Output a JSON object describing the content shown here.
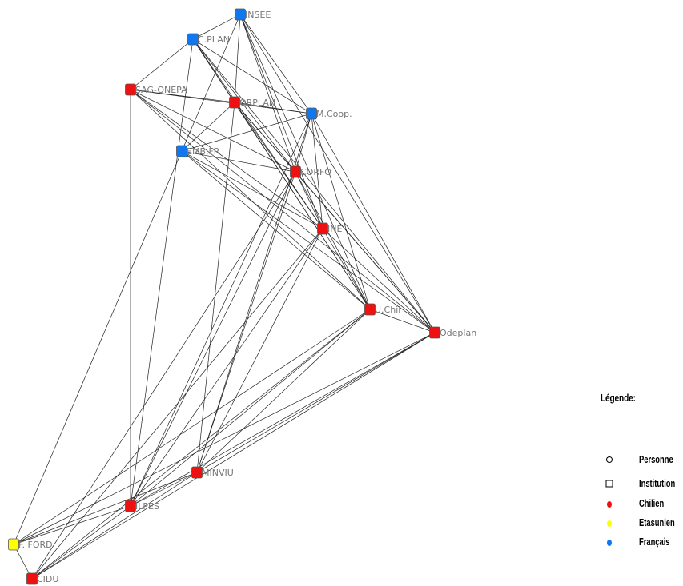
{
  "nodes": [
    {
      "id": "insee",
      "label": "INSEE",
      "nationality": "francais"
    },
    {
      "id": "cplan",
      "label": "C.PLAN",
      "nationality": "francais"
    },
    {
      "id": "sagonepa",
      "label": "SAG-ONEPA",
      "nationality": "chilien"
    },
    {
      "id": "orplan",
      "label": "ORPLAN",
      "nationality": "chilien"
    },
    {
      "id": "mcoop",
      "label": "M.Coop.",
      "nationality": "francais"
    },
    {
      "id": "embfr",
      "label": "EMB.FR",
      "nationality": "francais"
    },
    {
      "id": "corfo",
      "label": "CORFO",
      "nationality": "chilien"
    },
    {
      "id": "ine",
      "label": "INE",
      "nationality": "chilien"
    },
    {
      "id": "uchile",
      "label": "U.Chil",
      "nationality": "chilien"
    },
    {
      "id": "odeplan",
      "label": "Odeplan",
      "nationality": "chilien"
    },
    {
      "id": "minviu",
      "label": "MINVIU",
      "nationality": "chilien"
    },
    {
      "id": "ilpes",
      "label": "ILPES",
      "nationality": "chilien"
    },
    {
      "id": "fford",
      "label": "F. FORD",
      "nationality": "etasunien"
    },
    {
      "id": "cidu",
      "label": "CIDU",
      "nationality": "chilien"
    }
  ],
  "edges": [
    [
      "insee",
      "cplan"
    ],
    [
      "insee",
      "orplan"
    ],
    [
      "insee",
      "mcoop"
    ],
    [
      "insee",
      "corfo"
    ],
    [
      "insee",
      "ine"
    ],
    [
      "insee",
      "uchile"
    ],
    [
      "insee",
      "odeplan"
    ],
    [
      "insee",
      "embfr"
    ],
    [
      "cplan",
      "sagonepa"
    ],
    [
      "cplan",
      "orplan"
    ],
    [
      "cplan",
      "mcoop"
    ],
    [
      "cplan",
      "corfo"
    ],
    [
      "cplan",
      "ine"
    ],
    [
      "cplan",
      "uchile"
    ],
    [
      "cplan",
      "odeplan"
    ],
    [
      "cplan",
      "ilpes"
    ],
    [
      "sagonepa",
      "orplan"
    ],
    [
      "sagonepa",
      "mcoop"
    ],
    [
      "sagonepa",
      "corfo"
    ],
    [
      "sagonepa",
      "ine"
    ],
    [
      "sagonepa",
      "uchile"
    ],
    [
      "sagonepa",
      "odeplan"
    ],
    [
      "sagonepa",
      "ilpes"
    ],
    [
      "orplan",
      "mcoop"
    ],
    [
      "orplan",
      "corfo"
    ],
    [
      "orplan",
      "ine"
    ],
    [
      "orplan",
      "uchile"
    ],
    [
      "orplan",
      "odeplan"
    ],
    [
      "orplan",
      "embfr"
    ],
    [
      "orplan",
      "minviu"
    ],
    [
      "mcoop",
      "embfr"
    ],
    [
      "mcoop",
      "corfo"
    ],
    [
      "mcoop",
      "ine"
    ],
    [
      "mcoop",
      "uchile"
    ],
    [
      "mcoop",
      "odeplan"
    ],
    [
      "mcoop",
      "minviu"
    ],
    [
      "mcoop",
      "ilpes"
    ],
    [
      "embfr",
      "corfo"
    ],
    [
      "embfr",
      "ine"
    ],
    [
      "embfr",
      "uchile"
    ],
    [
      "embfr",
      "odeplan"
    ],
    [
      "embfr",
      "fford"
    ],
    [
      "corfo",
      "ine"
    ],
    [
      "corfo",
      "uchile"
    ],
    [
      "corfo",
      "odeplan"
    ],
    [
      "corfo",
      "minviu"
    ],
    [
      "corfo",
      "ilpes"
    ],
    [
      "corfo",
      "cidu"
    ],
    [
      "ine",
      "uchile"
    ],
    [
      "ine",
      "odeplan"
    ],
    [
      "ine",
      "minviu"
    ],
    [
      "ine",
      "ilpes"
    ],
    [
      "ine",
      "cidu"
    ],
    [
      "uchile",
      "odeplan"
    ],
    [
      "uchile",
      "minviu"
    ],
    [
      "uchile",
      "ilpes"
    ],
    [
      "uchile",
      "fford"
    ],
    [
      "uchile",
      "cidu"
    ],
    [
      "odeplan",
      "minviu"
    ],
    [
      "odeplan",
      "ilpes"
    ],
    [
      "odeplan",
      "fford"
    ],
    [
      "odeplan",
      "cidu"
    ],
    [
      "minviu",
      "ilpes"
    ],
    [
      "minviu",
      "fford"
    ],
    [
      "minviu",
      "cidu"
    ],
    [
      "ilpes",
      "fford"
    ],
    [
      "ilpes",
      "cidu"
    ],
    [
      "fford",
      "cidu"
    ]
  ],
  "colors": {
    "chilien": "#ee1111",
    "etasunien": "#ffff00",
    "francais": "#1177ee",
    "edge": "#222222",
    "node_border": "#555555"
  },
  "legend": {
    "title": "Légende:",
    "items": [
      {
        "label": "Personne",
        "symbol": "circle-outline"
      },
      {
        "label": "Institution",
        "symbol": "square-outline"
      },
      {
        "label": "Chilien",
        "symbol": "chilien"
      },
      {
        "label": "Etasunien",
        "symbol": "etasunien"
      },
      {
        "label": "Français",
        "symbol": "francais"
      }
    ]
  }
}
